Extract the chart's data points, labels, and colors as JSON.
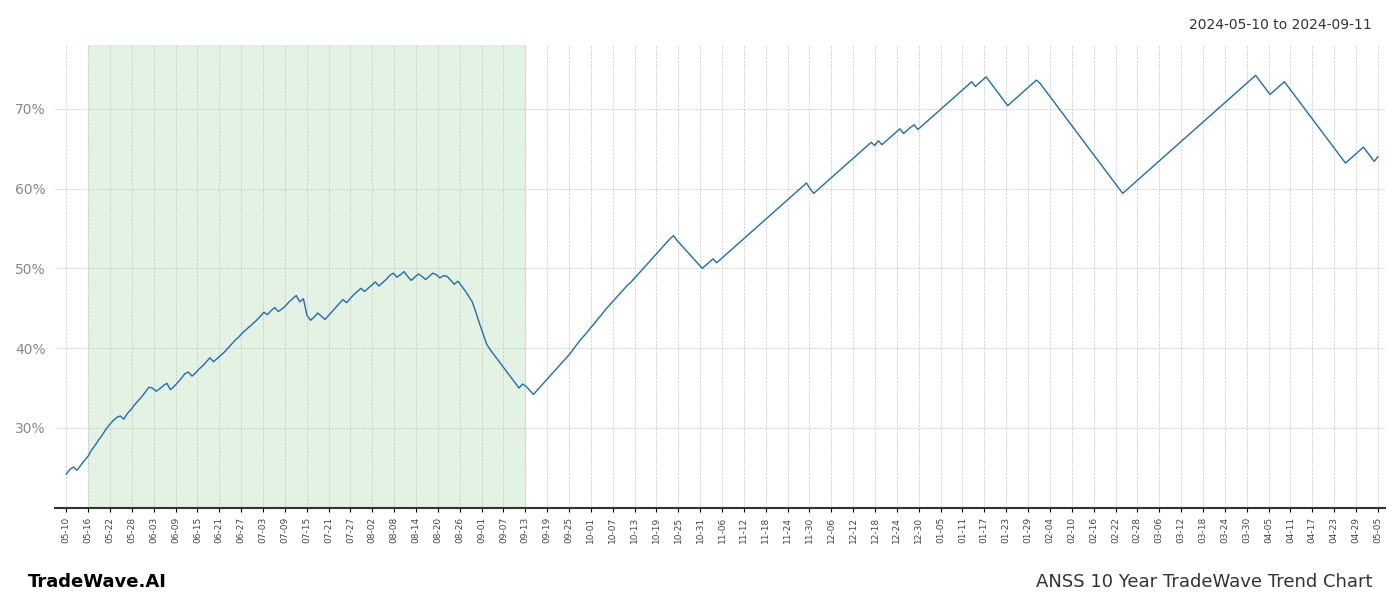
{
  "title_right": "2024-05-10 to 2024-09-11",
  "footer_left": "TradeWave.AI",
  "footer_right": "ANSS 10 Year TradeWave Trend Chart",
  "line_color": "#1e6db5",
  "shading_color": "#cde8cd",
  "shading_alpha": 0.55,
  "background_color": "#ffffff",
  "grid_color": "#c8c8c8",
  "yticks": [
    30,
    40,
    50,
    60,
    70
  ],
  "ylim": [
    20,
    78
  ],
  "shade_start_label": "05-16",
  "shade_end_label": "09-13",
  "x_labels_step": [
    "05-10",
    "05-16",
    "05-22",
    "05-28",
    "06-03",
    "06-09",
    "06-15",
    "06-21",
    "06-27",
    "07-03",
    "07-09",
    "07-15",
    "07-21",
    "07-27",
    "08-02",
    "08-08",
    "08-14",
    "08-20",
    "08-26",
    "09-01",
    "09-07",
    "09-13",
    "09-19",
    "09-25",
    "10-01",
    "10-07",
    "10-13",
    "10-19",
    "10-25",
    "10-31",
    "11-06",
    "11-12",
    "11-18",
    "11-24",
    "11-30",
    "12-06",
    "12-12",
    "12-18",
    "12-24",
    "12-30",
    "01-05",
    "01-11",
    "01-17",
    "01-23",
    "01-29",
    "02-04",
    "02-10",
    "02-16",
    "02-22",
    "02-28",
    "03-06",
    "03-12",
    "03-18",
    "03-24",
    "03-30",
    "04-05",
    "04-11",
    "04-17",
    "04-23",
    "04-29",
    "05-05"
  ],
  "values": [
    24.2,
    24.8,
    25.1,
    24.7,
    25.3,
    25.9,
    26.4,
    27.2,
    27.8,
    28.5,
    29.1,
    29.8,
    30.4,
    30.9,
    31.3,
    31.5,
    31.1,
    31.8,
    32.3,
    32.9,
    33.4,
    33.9,
    34.5,
    35.1,
    35.0,
    34.6,
    34.9,
    35.3,
    35.6,
    34.8,
    35.2,
    35.7,
    36.2,
    36.8,
    37.0,
    36.5,
    36.9,
    37.4,
    37.8,
    38.3,
    38.8,
    38.3,
    38.7,
    39.1,
    39.5,
    40.0,
    40.5,
    41.0,
    41.4,
    41.9,
    42.3,
    42.7,
    43.1,
    43.5,
    44.0,
    44.5,
    44.2,
    44.7,
    45.1,
    44.6,
    44.9,
    45.3,
    45.8,
    46.2,
    46.6,
    45.8,
    46.2,
    44.1,
    43.5,
    43.9,
    44.4,
    44.0,
    43.6,
    44.1,
    44.6,
    45.1,
    45.6,
    46.1,
    45.7,
    46.2,
    46.7,
    47.1,
    47.5,
    47.1,
    47.5,
    47.9,
    48.3,
    47.8,
    48.2,
    48.6,
    49.1,
    49.4,
    48.9,
    49.2,
    49.6,
    49.0,
    48.5,
    48.9,
    49.3,
    49.0,
    48.6,
    49.0,
    49.4,
    49.2,
    48.8,
    49.1,
    49.0,
    48.5,
    48.0,
    48.4,
    47.8,
    47.2,
    46.5,
    45.8,
    44.5,
    43.1,
    41.8,
    40.5,
    39.8,
    39.2,
    38.6,
    38.0,
    37.4,
    36.8,
    36.2,
    35.6,
    35.0,
    35.5,
    35.2,
    34.7,
    34.2,
    34.7,
    35.2,
    35.7,
    36.2,
    36.7,
    37.2,
    37.7,
    38.2,
    38.7,
    39.2,
    39.8,
    40.4,
    41.0,
    41.5,
    42.0,
    42.6,
    43.1,
    43.7,
    44.2,
    44.8,
    45.3,
    45.8,
    46.3,
    46.8,
    47.3,
    47.8,
    48.2,
    48.7,
    49.2,
    49.7,
    50.2,
    50.7,
    51.2,
    51.7,
    52.2,
    52.7,
    53.2,
    53.7,
    54.1,
    53.5,
    53.0,
    52.5,
    52.0,
    51.5,
    51.0,
    50.5,
    50.0,
    50.4,
    50.8,
    51.2,
    50.7,
    51.1,
    51.5,
    51.9,
    52.3,
    52.7,
    53.1,
    53.5,
    53.9,
    54.3,
    54.7,
    55.1,
    55.5,
    55.9,
    56.3,
    56.7,
    57.1,
    57.5,
    57.9,
    58.3,
    58.7,
    59.1,
    59.5,
    59.9,
    60.3,
    60.7,
    60.0,
    59.4,
    59.8,
    60.2,
    60.6,
    61.0,
    61.4,
    61.8,
    62.2,
    62.6,
    63.0,
    63.4,
    63.8,
    64.2,
    64.6,
    65.0,
    65.4,
    65.8,
    65.4,
    66.0,
    65.5,
    65.9,
    66.3,
    66.7,
    67.1,
    67.5,
    66.9,
    67.3,
    67.7,
    68.0,
    67.4,
    67.8,
    68.2,
    68.6,
    69.0,
    69.4,
    69.8,
    70.2,
    70.6,
    71.0,
    71.4,
    71.8,
    72.2,
    72.6,
    73.0,
    73.4,
    72.8,
    73.2,
    73.6,
    74.0,
    73.4,
    72.8,
    72.2,
    71.6,
    71.0,
    70.4,
    70.8,
    71.2,
    71.6,
    72.0,
    72.4,
    72.8,
    73.2,
    73.6,
    73.2,
    72.6,
    72.0,
    71.4,
    70.8,
    70.2,
    69.6,
    69.0,
    68.4,
    67.8,
    67.2,
    66.6,
    66.0,
    65.4,
    64.8,
    64.2,
    63.6,
    63.0,
    62.4,
    61.8,
    61.2,
    60.6,
    60.0,
    59.4,
    59.8,
    60.2,
    60.6,
    61.0,
    61.4,
    61.8,
    62.2,
    62.6,
    63.0,
    63.4,
    63.8,
    64.2,
    64.6,
    65.0,
    65.4,
    65.8,
    66.2,
    66.6,
    67.0,
    67.4,
    67.8,
    68.2,
    68.6,
    69.0,
    69.4,
    69.8,
    70.2,
    70.6,
    71.0,
    71.4,
    71.8,
    72.2,
    72.6,
    73.0,
    73.4,
    73.8,
    74.2,
    73.6,
    73.0,
    72.4,
    71.8,
    72.2,
    72.6,
    73.0,
    73.4,
    72.8,
    72.2,
    71.6,
    71.0,
    70.4,
    69.8,
    69.2,
    68.6,
    68.0,
    67.4,
    66.8,
    66.2,
    65.6,
    65.0,
    64.4,
    63.8,
    63.2,
    63.6,
    64.0,
    64.4,
    64.8,
    65.2,
    64.6,
    64.0,
    63.4,
    64.0
  ]
}
